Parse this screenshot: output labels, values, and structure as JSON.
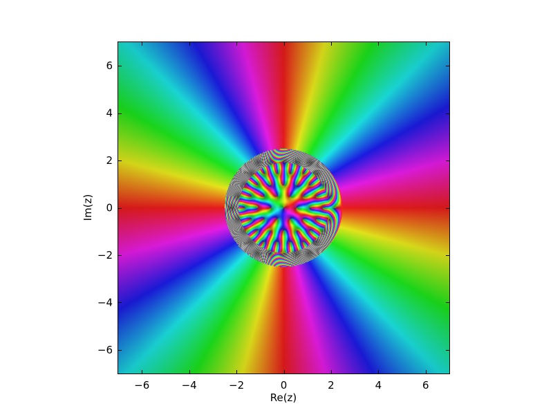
{
  "chart_data": {
    "type": "heatmap",
    "title": "",
    "xlabel": "Re(z)",
    "ylabel": "Im(z)",
    "xlim": [
      -7,
      7
    ],
    "ylim": [
      -7,
      7
    ],
    "xticks": [
      -6,
      -4,
      -2,
      0,
      2,
      4,
      6
    ],
    "yticks": [
      -6,
      -4,
      -2,
      0,
      2,
      4,
      6
    ],
    "xtick_labels": [
      "−6",
      "−4",
      "−2",
      "0",
      "2",
      "4",
      "6"
    ],
    "ytick_labels": [
      "−6",
      "−4",
      "−2",
      "0",
      "2",
      "4",
      "6"
    ],
    "grid": false,
    "legend": "none",
    "coloring": "domain coloring: hue = arg(f(z)), red = real positive",
    "spine_color": "#000000"
  }
}
